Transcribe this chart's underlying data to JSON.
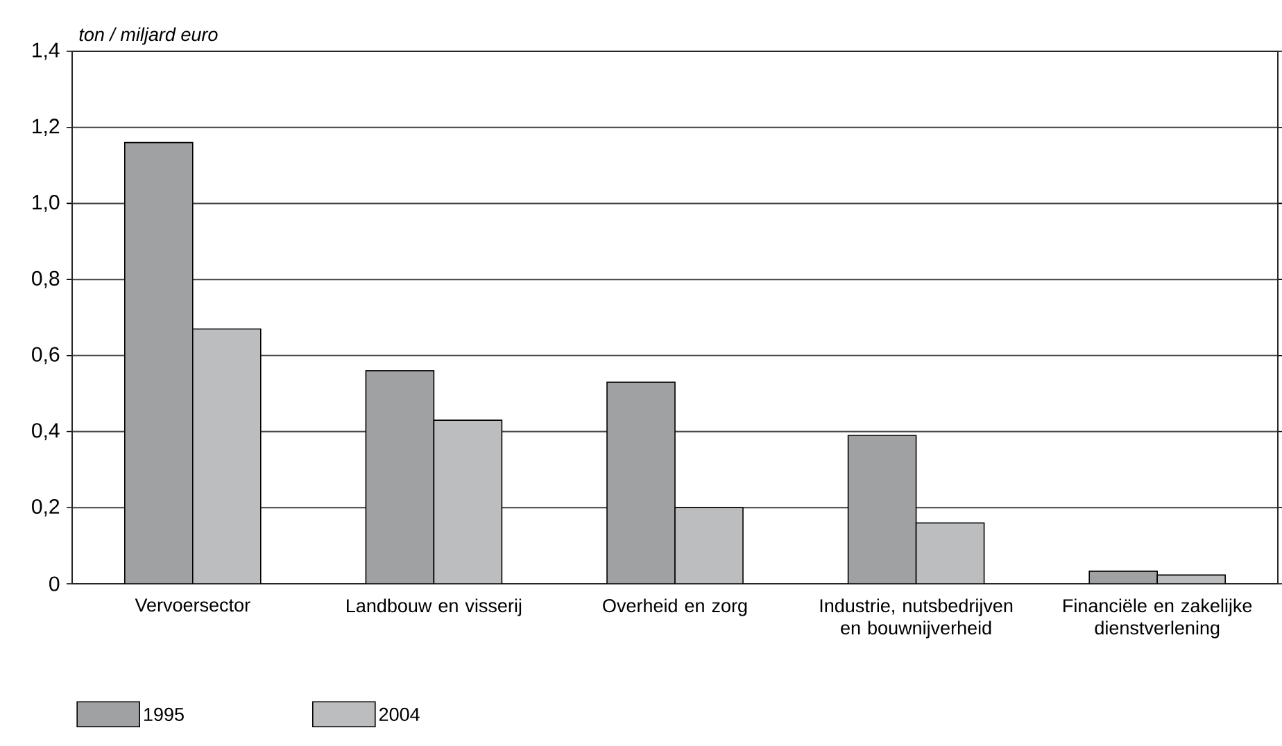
{
  "chart_data": {
    "type": "bar",
    "ylabel": "ton / miljard euro",
    "categories": [
      "Vervoersector",
      "Landbouw en visserij",
      "Overheid en zorg",
      "Industrie, nutsbedrijven en bouwnijverheid",
      "Financiële en zakelijke dienstverlening"
    ],
    "series": [
      {
        "name": "1995",
        "color": "#a0a1a3",
        "values": [
          1.16,
          0.56,
          0.53,
          0.39,
          0.033
        ]
      },
      {
        "name": "2004",
        "color": "#bcbdbf",
        "values": [
          0.67,
          0.43,
          0.2,
          0.16,
          0.023
        ]
      }
    ],
    "ylim": [
      0,
      1.4
    ],
    "yticks": [
      0,
      {
        "value": 0.2,
        "label": "0,2"
      },
      {
        "value": 0.4,
        "label": "0,4"
      },
      {
        "value": 0.6,
        "label": "0,6"
      },
      {
        "value": 0.8,
        "label": "0,8"
      },
      {
        "value": 1.0,
        "label": "1,0"
      },
      {
        "value": 1.2,
        "label": "1,2"
      },
      {
        "value": 1.4,
        "label": "1,4"
      }
    ],
    "grid": "y",
    "legend": "bottom left"
  }
}
